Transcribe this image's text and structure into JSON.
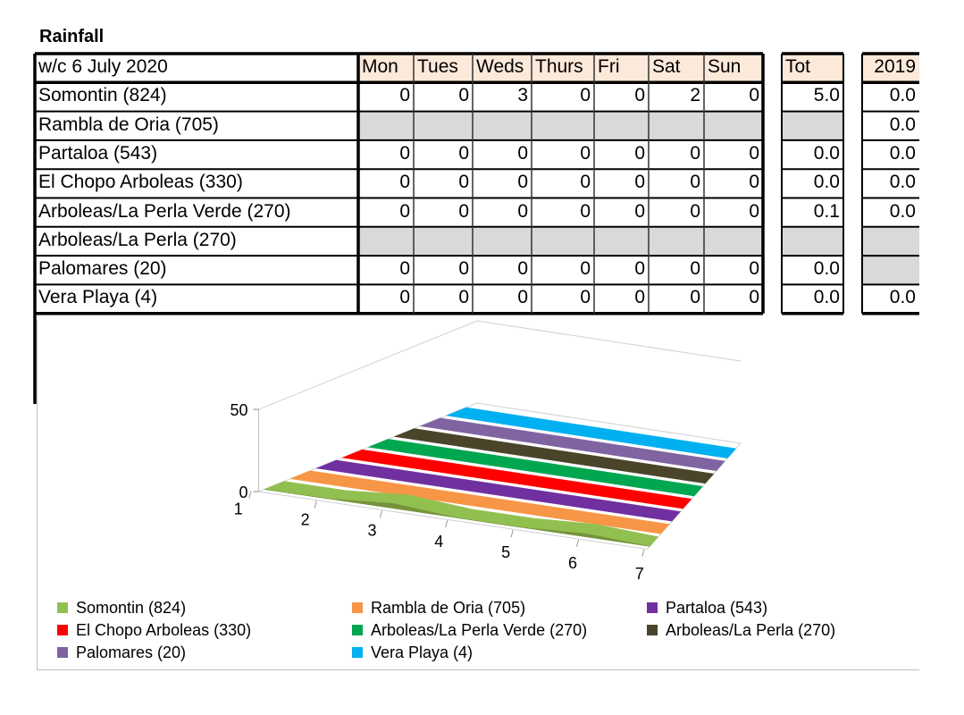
{
  "title": "Rainfall",
  "table": {
    "corner": "w/c 6 July  2020",
    "days": [
      "Mon",
      "Tues",
      "Weds",
      "Thurs",
      "Fri",
      "Sat",
      "Sun"
    ],
    "tot_label": "Tot",
    "year_label": "2019",
    "rows": [
      {
        "name": "Somontin (824)",
        "values": [
          "0",
          "0",
          "3",
          "0",
          "0",
          "2",
          "0"
        ],
        "tot": "5.0",
        "prev": "0.0"
      },
      {
        "name": "Rambla de Oria (705)",
        "values": [
          "",
          "",
          "",
          "",
          "",
          "",
          ""
        ],
        "tot": "",
        "prev": "0.0"
      },
      {
        "name": "Partaloa (543)",
        "values": [
          "0",
          "0",
          "0",
          "0",
          "0",
          "0",
          "0"
        ],
        "tot": "0.0",
        "prev": "0.0"
      },
      {
        "name": "El Chopo Arboleas (330)",
        "values": [
          "0",
          "0",
          "0",
          "0",
          "0",
          "0",
          "0"
        ],
        "tot": "0.0",
        "prev": "0.0"
      },
      {
        "name": "Arboleas/La Perla Verde (270)",
        "values": [
          "0",
          "0",
          "0",
          "0",
          "0",
          "0",
          "0"
        ],
        "tot": "0.1",
        "prev": "0.0"
      },
      {
        "name": "Arboleas/La Perla (270)",
        "values": [
          "",
          "",
          "",
          "",
          "",
          "",
          ""
        ],
        "tot": "",
        "prev": ""
      },
      {
        "name": "Palomares (20)",
        "values": [
          "0",
          "0",
          "0",
          "0",
          "0",
          "0",
          "0"
        ],
        "tot": "0.0",
        "prev": ""
      },
      {
        "name": "Vera Playa (4)",
        "values": [
          "0",
          "0",
          "0",
          "0",
          "0",
          "0",
          "0"
        ],
        "tot": "0.0",
        "prev": "0.0"
      }
    ]
  },
  "chart_data": {
    "type": "area",
    "x": [
      1,
      2,
      3,
      4,
      5,
      6,
      7
    ],
    "ylim": [
      0,
      50
    ],
    "yticks": [
      0,
      50
    ],
    "series": [
      {
        "name": "Somontin (824)",
        "color": "#92c050",
        "values": [
          0,
          0,
          3,
          0,
          0,
          2,
          0
        ]
      },
      {
        "name": "Rambla de Oria (705)",
        "color": "#f79646",
        "values": [
          0,
          0,
          0,
          0,
          0,
          0,
          0
        ]
      },
      {
        "name": "Partaloa (543)",
        "color": "#7030a0",
        "values": [
          0,
          0,
          0,
          0,
          0,
          0,
          0
        ]
      },
      {
        "name": "El Chopo Arboleas (330)",
        "color": "#ff0000",
        "values": [
          0,
          0,
          0,
          0,
          0,
          0,
          0
        ]
      },
      {
        "name": "Arboleas/La Perla Verde (270)",
        "color": "#00a650",
        "values": [
          0,
          0,
          0,
          0,
          0,
          0,
          0
        ]
      },
      {
        "name": "Arboleas/La Perla (270)",
        "color": "#4a452a",
        "values": [
          0,
          0,
          0,
          0,
          0,
          0,
          0
        ]
      },
      {
        "name": "Palomares (20)",
        "color": "#8064a2",
        "values": [
          0,
          0,
          0,
          0,
          0,
          0,
          0
        ]
      },
      {
        "name": "Vera Playa (4)",
        "color": "#00b0f0",
        "values": [
          0,
          0,
          0,
          0,
          0,
          0,
          0
        ]
      }
    ],
    "legend_position": "bottom"
  }
}
